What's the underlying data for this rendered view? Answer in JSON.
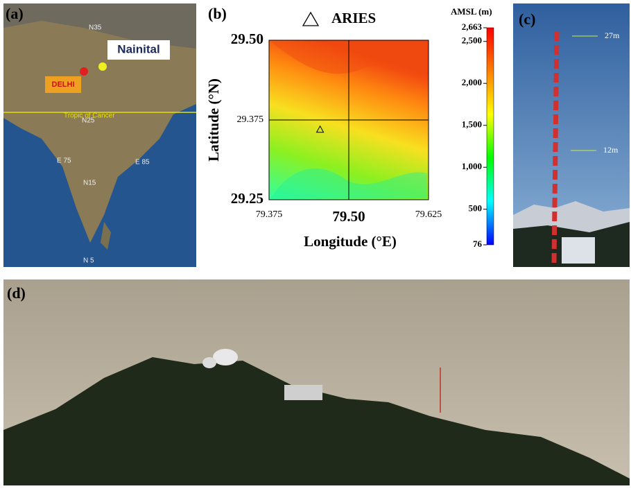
{
  "panel_a": {
    "label": "(a)",
    "place_labels": [
      "N35",
      "Nainital",
      "DELHI",
      "Tropic of Cancer",
      "N25",
      "E 75",
      "E 85",
      "N15",
      "N 5"
    ]
  },
  "chart_data": {
    "type": "heatmap",
    "panel_label": "(b)",
    "xlabel": "Longitude (°E)",
    "ylabel": "Latitude (°N)",
    "xlim": [
      79.375,
      79.625
    ],
    "xticks": [
      79.375,
      {
        "value": 79.5,
        "label": "79.50"
      },
      79.625
    ],
    "ylim": [
      29.25,
      29.5
    ],
    "yticks": [
      29.25,
      29.375,
      {
        "value": 29.5,
        "label": "29.50"
      }
    ],
    "grid": true,
    "markers": [
      {
        "name": "ARIES",
        "x": 79.455,
        "y": 29.36
      }
    ],
    "colorbar": {
      "title": "AMSL (m)",
      "lim": [
        76,
        2663
      ],
      "ticks": [
        76,
        500,
        {
          "value": 1000,
          "label": "1,000"
        },
        {
          "value": 1500,
          "label": "1,500"
        },
        {
          "value": 2000,
          "label": "2,000"
        },
        {
          "value": 2500,
          "label": "2,500"
        },
        {
          "value": 2663,
          "label": "2,663"
        }
      ],
      "colors": [
        "#0000ff",
        "#00ffff",
        "#00ff00",
        "#ffff00",
        "#ff8000",
        "#ff0000"
      ]
    }
  },
  "panel_c": {
    "label": "(c)",
    "annotations": [
      "27m",
      "12m"
    ]
  },
  "panel_d": {
    "label": "(d)"
  }
}
